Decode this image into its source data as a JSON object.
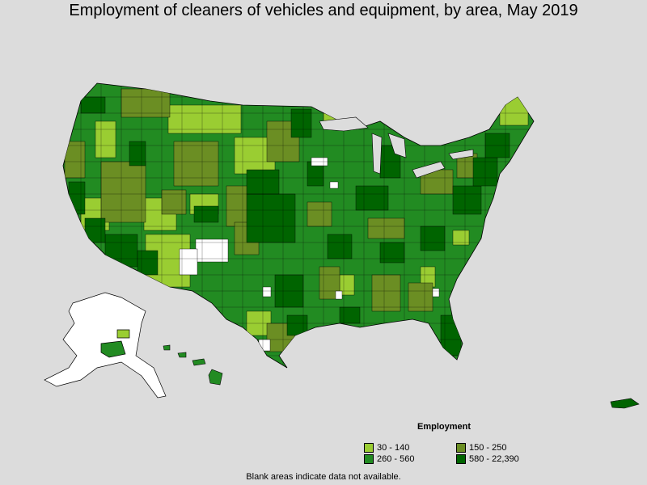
{
  "title": "Employment of cleaners of vehicles and equipment, by area, May 2019",
  "legend": {
    "title": "Employment",
    "items": [
      {
        "label": "30 - 140",
        "color": "#9acd32"
      },
      {
        "label": "150 - 250",
        "color": "#6b8e23"
      },
      {
        "label": "260 - 560",
        "color": "#228b22"
      },
      {
        "label": "580 - 22,390",
        "color": "#006400"
      }
    ]
  },
  "note": "Blank areas indicate data not available.",
  "colors": {
    "background": "#dcdcdc",
    "no_data": "#ffffff",
    "border": "#000000"
  }
}
